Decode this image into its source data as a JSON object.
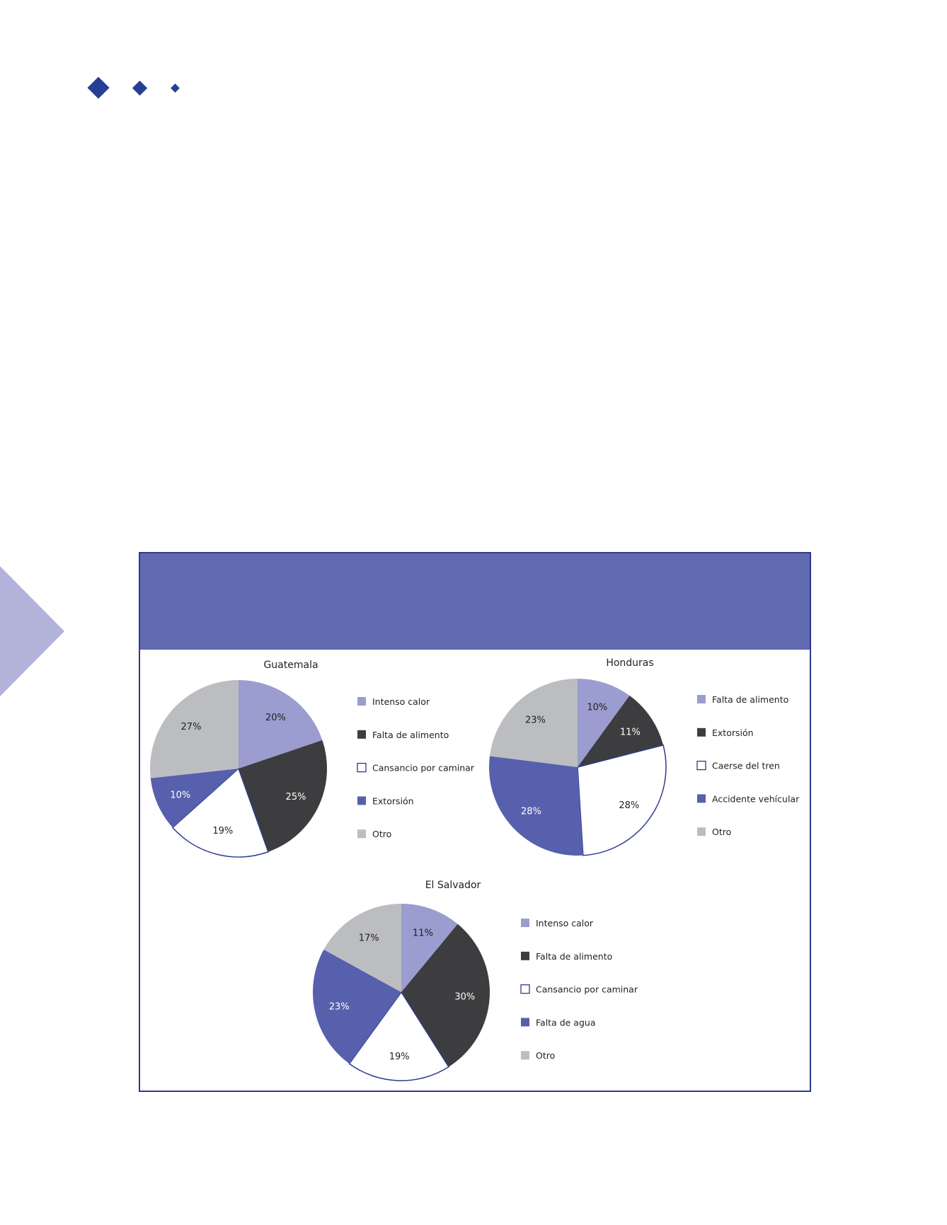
{
  "colors": {
    "accent": "#253f94",
    "header": "#6169b0",
    "border": "#2e3a8c",
    "triangle": "#b1b3da"
  },
  "chart_data": [
    {
      "type": "pie",
      "title": "Guatemala",
      "categories": [
        "Intenso calor",
        "Falta de alimento",
        "Cansancio por caminar",
        "Extorsión",
        "Otro"
      ],
      "values": [
        20,
        25,
        19,
        10,
        27
      ],
      "labels": [
        "20%",
        "25%",
        "19%",
        "10%",
        "27%"
      ],
      "colors": [
        "#9b9ccf",
        "#3d3d3f",
        "#ffffff",
        "#5760ad",
        "#bcbdc1"
      ],
      "legend": "right"
    },
    {
      "type": "pie",
      "title": "Honduras",
      "categories": [
        "Falta de alimento",
        "Extorsión",
        "Caerse del tren",
        "Accidente vehícular",
        "Otro"
      ],
      "values": [
        10,
        11,
        28,
        28,
        23
      ],
      "labels": [
        "10%",
        "11%",
        "28%",
        "28%",
        "23%"
      ],
      "colors": [
        "#9b9ccf",
        "#3d3d3f",
        "#ffffff",
        "#5760ad",
        "#bcbdc1"
      ],
      "legend": "right"
    },
    {
      "type": "pie",
      "title": "El Salvador",
      "categories": [
        "Intenso calor",
        "Falta de alimento",
        "Cansancio por caminar",
        "Falta de agua",
        "Otro"
      ],
      "values": [
        11,
        30,
        19,
        23,
        17
      ],
      "labels": [
        "11%",
        "30%",
        "19%",
        "23%",
        "17%"
      ],
      "colors": [
        "#9b9ccf",
        "#3d3d3f",
        "#ffffff",
        "#5760ad",
        "#bcbdc1"
      ],
      "legend": "right"
    }
  ]
}
